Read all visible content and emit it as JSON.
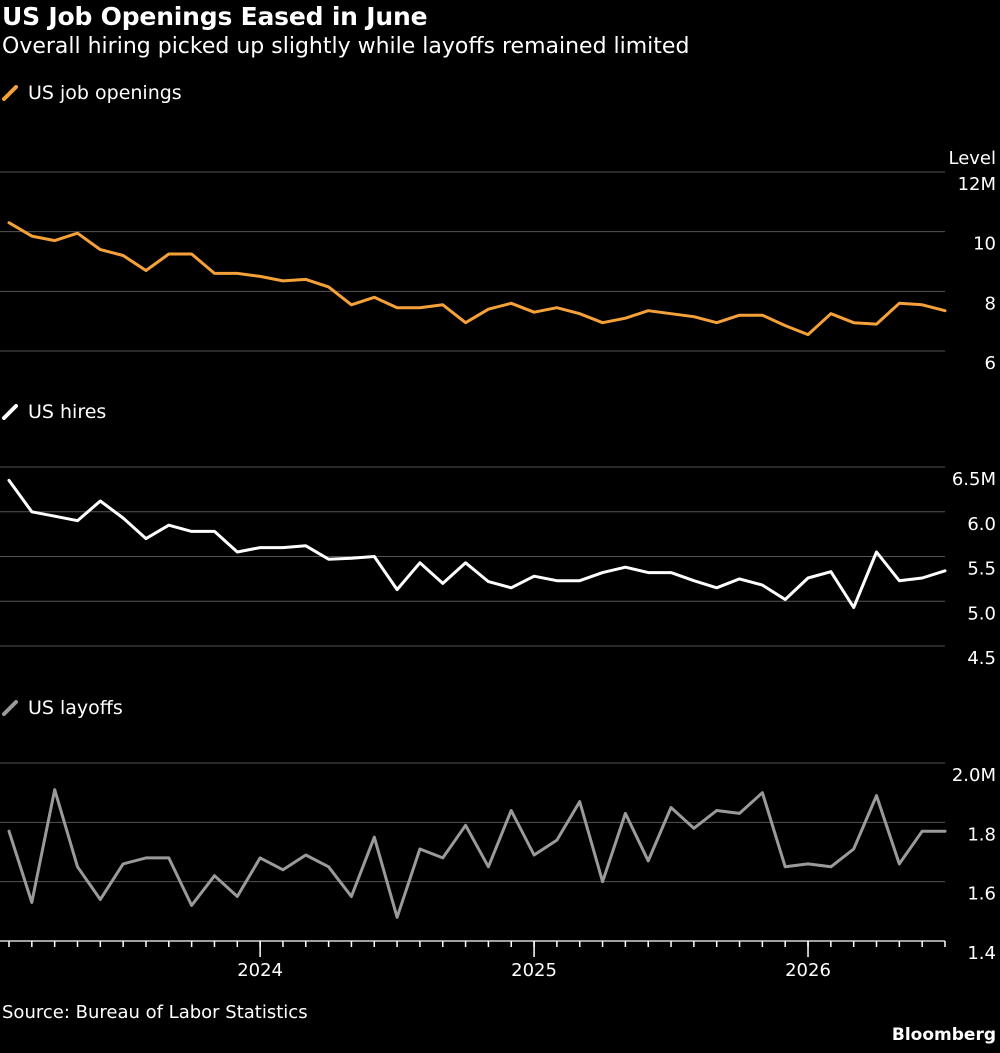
{
  "title": "US Job Openings Eased in June",
  "subtitle": "Overall hiring picked up slightly while layoffs remained limited",
  "source": "Source: Bureau of Labor Statistics",
  "brand": "Bloomberg",
  "level_label": "Level",
  "legend": {
    "openings": "US job openings",
    "hires": "US hires",
    "layoffs": "US layoffs"
  },
  "chart_data": {
    "type": "line",
    "x_axis": {
      "ticks_monthly": true,
      "year_labels": [
        "2024",
        "2025",
        "2026"
      ]
    },
    "panels": [
      {
        "key": "openings",
        "name": "US job openings",
        "color": "#f5a13a",
        "unit": "M",
        "ylim": [
          6,
          12
        ],
        "yticks": [
          6,
          8,
          10,
          12
        ],
        "ytick_labels": [
          "6",
          "8",
          "10",
          "12M"
        ],
        "values": [
          10.3,
          9.85,
          9.7,
          9.95,
          9.4,
          9.2,
          8.7,
          9.25,
          9.25,
          8.6,
          8.6,
          8.5,
          8.35,
          8.4,
          8.15,
          7.55,
          7.8,
          7.45,
          7.45,
          7.55,
          6.95,
          7.4,
          7.6,
          7.3,
          7.45,
          7.25,
          6.95,
          7.1,
          7.35,
          7.25,
          7.15,
          6.95,
          7.2,
          7.2,
          6.85,
          6.55,
          7.25,
          6.95,
          6.9,
          7.6,
          7.55,
          7.35
        ]
      },
      {
        "key": "hires",
        "name": "US hires",
        "color": "#ffffff",
        "unit": "M",
        "ylim": [
          4.5,
          6.5
        ],
        "yticks": [
          4.5,
          5.0,
          5.5,
          6.0,
          6.5
        ],
        "ytick_labels": [
          "4.5",
          "5.0",
          "5.5",
          "6.0",
          "6.5M"
        ],
        "values": [
          6.35,
          6.0,
          5.95,
          5.9,
          6.12,
          5.93,
          5.7,
          5.85,
          5.78,
          5.78,
          5.55,
          5.6,
          5.6,
          5.62,
          5.47,
          5.48,
          5.5,
          5.13,
          5.43,
          5.2,
          5.43,
          5.22,
          5.15,
          5.28,
          5.23,
          5.23,
          5.32,
          5.38,
          5.32,
          5.32,
          5.23,
          5.15,
          5.25,
          5.18,
          5.02,
          5.26,
          5.33,
          4.93,
          5.55,
          5.23,
          5.26,
          5.34
        ]
      },
      {
        "key": "layoffs",
        "name": "US layoffs",
        "color": "#9a9a9a",
        "unit": "M",
        "ylim": [
          1.4,
          2.0
        ],
        "yticks": [
          1.4,
          1.6,
          1.8,
          2.0
        ],
        "ytick_labels": [
          "1.4",
          "1.6",
          "1.8",
          "2.0M"
        ],
        "values": [
          1.77,
          1.53,
          1.91,
          1.65,
          1.54,
          1.66,
          1.68,
          1.68,
          1.52,
          1.62,
          1.55,
          1.68,
          1.64,
          1.69,
          1.65,
          1.55,
          1.75,
          1.48,
          1.71,
          1.68,
          1.79,
          1.65,
          1.84,
          1.69,
          1.74,
          1.87,
          1.6,
          1.83,
          1.67,
          1.85,
          1.78,
          1.84,
          1.83,
          1.9,
          1.65,
          1.66,
          1.65,
          1.71,
          1.89,
          1.66,
          1.77,
          1.77
        ]
      }
    ]
  }
}
